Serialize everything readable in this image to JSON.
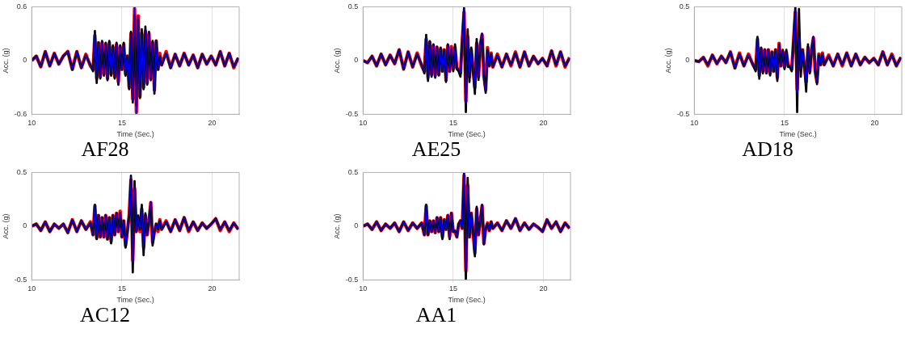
{
  "chart_data": [
    {
      "type": "line",
      "title": "AF28",
      "xlabel": "Time (Sec.)",
      "ylabel": "Acc. (g)",
      "xlim": [
        10,
        21.5
      ],
      "ylim": [
        -0.6,
        0.6
      ],
      "xticks": [
        10,
        15,
        20
      ],
      "yticks": [
        -0.6,
        0,
        0.6
      ],
      "grid": "x",
      "legend": false,
      "marker": "none",
      "line_style": "solid",
      "x": [
        10,
        10.25,
        10.5,
        10.75,
        11,
        11.25,
        11.5,
        11.75,
        12,
        12.25,
        12.5,
        12.75,
        13,
        13.25,
        13.4,
        13.5,
        13.6,
        13.7,
        13.8,
        13.9,
        14,
        14.1,
        14.2,
        14.3,
        14.4,
        14.5,
        14.6,
        14.7,
        14.8,
        14.9,
        15,
        15.1,
        15.2,
        15.3,
        15.4,
        15.5,
        15.6,
        15.7,
        15.8,
        15.9,
        16,
        16.1,
        16.2,
        16.3,
        16.4,
        16.5,
        16.6,
        16.7,
        16.8,
        16.9,
        17,
        17.1,
        17.2,
        17.45,
        17.7,
        17.95,
        18.2,
        18.45,
        18.7,
        18.95,
        19.2,
        19.45,
        19.7,
        19.95,
        20.2,
        20.45,
        20.7,
        20.95,
        21.2,
        21.45
      ],
      "series": [
        {
          "color": "#000000",
          "values": [
            0,
            0.05,
            -0.07,
            0.1,
            -0.06,
            0.08,
            -0.04,
            0.05,
            0.1,
            -0.1,
            0.1,
            -0.08,
            0.06,
            -0.05,
            -0.12,
            0.33,
            -0.25,
            0.2,
            -0.2,
            0.22,
            -0.17,
            0.2,
            -0.22,
            0.22,
            -0.17,
            0.17,
            -0.2,
            0.2,
            -0.27,
            0.17,
            -0.1,
            0.2,
            -0.17,
            0.05,
            -0.32,
            0.32,
            -0.47,
            0.5,
            -0.5,
            0.45,
            -0.42,
            0.35,
            -0.32,
            0.38,
            -0.27,
            0.32,
            -0.22,
            0.22,
            -0.37,
            0.22,
            -0.1,
            0.05,
            -0.05,
            0.08,
            -0.08,
            0.07,
            -0.06,
            0.08,
            -0.05,
            0.06,
            -0.08,
            0.07,
            -0.04,
            0.05,
            -0.05,
            0.1,
            -0.06,
            0.08,
            -0.07,
            0.03
          ]
        },
        {
          "color": "#ff0000",
          "values": [
            0,
            0.05,
            -0.07,
            0.1,
            -0.06,
            0.08,
            -0.04,
            0.05,
            0.1,
            -0.1,
            0.1,
            -0.08,
            0.07,
            -0.06,
            -0.1,
            0.28,
            -0.2,
            0.2,
            -0.18,
            0.2,
            -0.15,
            0.18,
            -0.2,
            0.2,
            -0.15,
            0.15,
            -0.18,
            0.18,
            -0.24,
            0.15,
            -0.1,
            0.18,
            -0.15,
            0.05,
            -0.3,
            0.3,
            -0.43,
            0.58,
            -0.58,
            0.5,
            -0.4,
            0.3,
            -0.3,
            0.33,
            -0.25,
            0.3,
            -0.2,
            0.2,
            -0.33,
            0.22,
            -0.1,
            0.08,
            -0.05,
            0.1,
            -0.08,
            0.07,
            -0.06,
            0.08,
            -0.05,
            0.06,
            -0.08,
            0.07,
            -0.04,
            0.05,
            -0.05,
            0.1,
            -0.06,
            0.08,
            -0.08,
            0.03
          ]
        },
        {
          "color": "#0000ff",
          "values": [
            0,
            0.05,
            -0.07,
            0.1,
            -0.06,
            0.08,
            -0.04,
            0.05,
            0.1,
            -0.1,
            0.1,
            -0.08,
            0.06,
            -0.05,
            -0.1,
            0.3,
            -0.2,
            0.2,
            -0.18,
            0.2,
            -0.15,
            0.18,
            -0.2,
            0.2,
            -0.15,
            0.15,
            -0.18,
            0.18,
            -0.25,
            0.15,
            -0.1,
            0.18,
            -0.15,
            0.05,
            -0.3,
            0.3,
            -0.45,
            0.6,
            -0.6,
            0.5,
            -0.4,
            0.3,
            -0.3,
            0.35,
            -0.25,
            0.3,
            -0.2,
            0.2,
            -0.35,
            0.22,
            -0.1,
            0.05,
            -0.05,
            0.08,
            -0.08,
            0.07,
            -0.06,
            0.08,
            -0.05,
            0.06,
            -0.08,
            0.07,
            -0.04,
            0.05,
            -0.05,
            0.1,
            -0.06,
            0.08,
            -0.07,
            0.03
          ]
        }
      ]
    },
    {
      "type": "line",
      "title": "AE25",
      "xlabel": "Time (Sec.)",
      "ylabel": "Acc. (g)",
      "xlim": [
        10,
        21.5
      ],
      "ylim": [
        -0.5,
        0.5
      ],
      "xticks": [
        10,
        15,
        20
      ],
      "yticks": [
        -0.5,
        0,
        0.5
      ],
      "grid": "x",
      "legend": false,
      "marker": "none",
      "line_style": "solid",
      "x": [
        10,
        10.25,
        10.5,
        10.75,
        11,
        11.25,
        11.5,
        11.75,
        12,
        12.25,
        12.5,
        12.75,
        13,
        13.25,
        13.4,
        13.5,
        13.6,
        13.7,
        13.8,
        13.9,
        14,
        14.1,
        14.2,
        14.3,
        14.4,
        14.5,
        14.6,
        14.7,
        14.8,
        14.9,
        15,
        15.1,
        15.2,
        15.3,
        15.4,
        15.5,
        15.6,
        15.7,
        15.8,
        15.9,
        16,
        16.1,
        16.2,
        16.3,
        16.4,
        16.5,
        16.6,
        16.7,
        16.8,
        16.9,
        17,
        17.1,
        17.2,
        17.45,
        17.7,
        17.95,
        18.2,
        18.45,
        18.7,
        18.95,
        19.2,
        19.45,
        19.7,
        19.95,
        20.2,
        20.45,
        20.7,
        20.95,
        21.2,
        21.45
      ],
      "series": [
        {
          "color": "#000000",
          "values": [
            0,
            -0.02,
            0.04,
            -0.05,
            0.06,
            -0.04,
            0.05,
            -0.03,
            0.1,
            -0.08,
            0.08,
            -0.06,
            0.06,
            -0.04,
            -0.12,
            0.24,
            -0.19,
            0.18,
            -0.15,
            0.15,
            -0.16,
            0.13,
            -0.14,
            0.12,
            -0.1,
            0.1,
            -0.2,
            0.15,
            -0.1,
            0.1,
            -0.1,
            0.15,
            -0.08,
            -0.1,
            -0.15,
            0.2,
            0.49,
            -0.48,
            0.29,
            -0.2,
            0.12,
            -0.1,
            -0.31,
            0.2,
            -0.18,
            0.15,
            0.25,
            -0.15,
            -0.3,
            0.1,
            -0.05,
            0.06,
            -0.06,
            0.05,
            -0.06,
            0.06,
            -0.04,
            0.07,
            -0.06,
            0.08,
            -0.05,
            0.04,
            -0.03,
            0.02,
            -0.05,
            0.09,
            -0.04,
            0.08,
            -0.05,
            0.02
          ]
        },
        {
          "color": "#ff0000",
          "values": [
            0,
            -0.02,
            0.04,
            -0.05,
            0.06,
            -0.04,
            0.05,
            -0.03,
            0.1,
            -0.08,
            0.08,
            -0.06,
            0.07,
            -0.05,
            -0.1,
            0.2,
            -0.16,
            0.17,
            -0.13,
            0.14,
            -0.14,
            0.12,
            -0.13,
            0.11,
            -0.1,
            0.1,
            -0.18,
            0.14,
            -0.1,
            0.13,
            -0.08,
            0.12,
            -0.07,
            -0.08,
            -0.12,
            0.18,
            0.45,
            -0.38,
            0.22,
            -0.15,
            0.1,
            -0.08,
            -0.25,
            0.16,
            -0.15,
            0.14,
            0.24,
            -0.14,
            -0.27,
            0.12,
            -0.05,
            0.07,
            -0.06,
            0.06,
            -0.06,
            0.06,
            -0.05,
            0.08,
            -0.06,
            0.08,
            -0.05,
            0.04,
            -0.03,
            0.02,
            -0.05,
            0.09,
            -0.05,
            0.08,
            -0.06,
            0.03
          ]
        },
        {
          "color": "#0000ff",
          "values": [
            0,
            -0.02,
            0.04,
            -0.05,
            0.06,
            -0.04,
            0.05,
            -0.03,
            0.1,
            -0.08,
            0.08,
            -0.06,
            0.06,
            -0.04,
            -0.1,
            0.22,
            -0.17,
            0.17,
            -0.14,
            0.14,
            -0.15,
            0.12,
            -0.13,
            0.11,
            -0.1,
            0.1,
            -0.18,
            0.14,
            -0.1,
            0.12,
            -0.08,
            0.12,
            -0.07,
            -0.08,
            -0.12,
            0.18,
            0.48,
            -0.4,
            0.22,
            -0.15,
            0.1,
            -0.08,
            -0.25,
            0.16,
            -0.15,
            0.14,
            0.25,
            -0.14,
            -0.28,
            0.1,
            -0.05,
            0.06,
            -0.06,
            0.05,
            -0.06,
            0.06,
            -0.04,
            0.07,
            -0.06,
            0.08,
            -0.05,
            0.04,
            -0.03,
            0.02,
            -0.05,
            0.09,
            -0.04,
            0.08,
            -0.05,
            0.02
          ]
        }
      ]
    },
    {
      "type": "line",
      "title": "AD18",
      "xlabel": "Time (Sec.)",
      "ylabel": "Acc. (g)",
      "xlim": [
        10,
        21.5
      ],
      "ylim": [
        -0.5,
        0.5
      ],
      "xticks": [
        10,
        15,
        20
      ],
      "yticks": [
        -0.5,
        0,
        0.5
      ],
      "grid": "x",
      "legend": false,
      "marker": "none",
      "line_style": "solid",
      "x": [
        10,
        10.25,
        10.5,
        10.75,
        11,
        11.25,
        11.5,
        11.75,
        12,
        12.25,
        12.5,
        12.75,
        13,
        13.25,
        13.4,
        13.5,
        13.6,
        13.7,
        13.8,
        13.9,
        14,
        14.1,
        14.2,
        14.3,
        14.4,
        14.5,
        14.6,
        14.7,
        14.8,
        14.9,
        15,
        15.1,
        15.2,
        15.3,
        15.4,
        15.5,
        15.6,
        15.7,
        15.8,
        15.9,
        16,
        16.1,
        16.2,
        16.3,
        16.4,
        16.5,
        16.6,
        16.7,
        16.8,
        16.9,
        17,
        17.1,
        17.2,
        17.45,
        17.7,
        17.95,
        18.2,
        18.45,
        18.7,
        18.95,
        19.2,
        19.45,
        19.7,
        19.95,
        20.2,
        20.45,
        20.7,
        20.95,
        21.2,
        21.45
      ],
      "series": [
        {
          "color": "#000000",
          "values": [
            0,
            -0.01,
            0.03,
            -0.04,
            0.05,
            -0.03,
            0.04,
            -0.02,
            0.08,
            -0.07,
            0.06,
            -0.05,
            0.05,
            -0.04,
            -0.1,
            0.22,
            -0.17,
            0.12,
            -0.12,
            0.1,
            -0.12,
            0.1,
            -0.14,
            0.08,
            -0.1,
            0.1,
            -0.19,
            0.15,
            -0.05,
            0.1,
            -0.08,
            0.1,
            -0.06,
            -0.06,
            -0.1,
            0.2,
            0.5,
            -0.48,
            0.48,
            -0.15,
            0.1,
            -0.05,
            -0.29,
            0.15,
            -0.12,
            0.1,
            0.22,
            -0.1,
            -0.22,
            0.05,
            -0.04,
            0.06,
            -0.04,
            0.04,
            -0.05,
            0.06,
            -0.04,
            0.07,
            -0.05,
            0.06,
            -0.04,
            0.03,
            -0.02,
            0.02,
            -0.04,
            0.08,
            -0.04,
            0.05,
            -0.05,
            0.03
          ]
        },
        {
          "color": "#ff0000",
          "values": [
            0,
            -0.01,
            0.03,
            -0.05,
            0.05,
            -0.03,
            0.04,
            -0.02,
            0.08,
            -0.07,
            0.07,
            -0.05,
            0.06,
            -0.04,
            -0.08,
            0.2,
            -0.14,
            0.11,
            -0.1,
            0.1,
            -0.11,
            0.1,
            -0.12,
            0.08,
            -0.1,
            0.1,
            -0.16,
            0.16,
            -0.05,
            0.08,
            -0.06,
            0.08,
            -0.05,
            -0.05,
            -0.08,
            0.18,
            0.45,
            -0.27,
            0.2,
            -0.08,
            0.1,
            -0.05,
            -0.2,
            0.12,
            -0.1,
            0.1,
            0.21,
            -0.1,
            -0.2,
            0.06,
            -0.04,
            0.07,
            -0.04,
            0.05,
            -0.05,
            0.06,
            -0.05,
            0.07,
            -0.05,
            0.06,
            -0.04,
            0.03,
            -0.02,
            0.02,
            -0.04,
            0.08,
            -0.04,
            0.06,
            -0.05,
            0.03
          ]
        },
        {
          "color": "#0000ff",
          "values": [
            0,
            -0.01,
            0.03,
            -0.04,
            0.05,
            -0.03,
            0.04,
            -0.02,
            0.08,
            -0.07,
            0.06,
            -0.05,
            0.05,
            -0.04,
            -0.08,
            0.21,
            -0.15,
            0.11,
            -0.1,
            0.1,
            -0.11,
            0.1,
            -0.12,
            0.08,
            -0.1,
            0.1,
            -0.17,
            0.14,
            -0.05,
            0.08,
            -0.06,
            0.08,
            -0.05,
            -0.05,
            -0.08,
            0.18,
            0.47,
            -0.3,
            0.22,
            -0.08,
            0.1,
            -0.05,
            -0.22,
            0.12,
            -0.1,
            0.1,
            0.22,
            -0.1,
            -0.2,
            0.05,
            -0.04,
            0.06,
            -0.04,
            0.04,
            -0.05,
            0.06,
            -0.04,
            0.07,
            -0.05,
            0.06,
            -0.04,
            0.03,
            -0.02,
            0.02,
            -0.04,
            0.08,
            -0.04,
            0.05,
            -0.05,
            0.03
          ]
        }
      ]
    },
    {
      "type": "line",
      "title": "AC12",
      "xlabel": "Time (Sec.)",
      "ylabel": "Acc. (g)",
      "xlim": [
        10,
        21.5
      ],
      "ylim": [
        -0.5,
        0.5
      ],
      "xticks": [
        10,
        15,
        20
      ],
      "yticks": [
        -0.5,
        0,
        0.5
      ],
      "grid": "x",
      "legend": false,
      "marker": "none",
      "line_style": "solid",
      "x": [
        10,
        10.25,
        10.5,
        10.75,
        11,
        11.25,
        11.5,
        11.75,
        12,
        12.25,
        12.5,
        12.75,
        13,
        13.25,
        13.4,
        13.5,
        13.6,
        13.7,
        13.8,
        13.9,
        14,
        14.1,
        14.2,
        14.3,
        14.4,
        14.5,
        14.6,
        14.7,
        14.8,
        14.9,
        15,
        15.1,
        15.2,
        15.3,
        15.4,
        15.5,
        15.6,
        15.7,
        15.8,
        15.9,
        16,
        16.1,
        16.2,
        16.3,
        16.4,
        16.5,
        16.6,
        16.7,
        16.8,
        16.9,
        17,
        17.1,
        17.2,
        17.45,
        17.7,
        17.95,
        18.2,
        18.45,
        18.7,
        18.95,
        19.2,
        19.45,
        19.7,
        19.95,
        20.2,
        20.45,
        20.7,
        20.95,
        21.2,
        21.45
      ],
      "series": [
        {
          "color": "#000000",
          "values": [
            0,
            0.02,
            -0.04,
            0.04,
            -0.05,
            0.02,
            -0.02,
            0.02,
            -0.06,
            0.06,
            -0.05,
            0.05,
            -0.03,
            0.03,
            -0.08,
            0.2,
            -0.12,
            0.1,
            -0.1,
            0.08,
            -0.1,
            0.1,
            -0.12,
            0.08,
            -0.16,
            0.1,
            -0.08,
            0.12,
            -0.05,
            0.12,
            -0.1,
            0.05,
            -0.2,
            -0.05,
            0.1,
            0.47,
            -0.43,
            0.42,
            -0.05,
            0.1,
            -0.03,
            0.2,
            -0.27,
            0.12,
            -0.08,
            0.05,
            0.22,
            -0.18,
            -0.05,
            0.02,
            -0.03,
            0.05,
            -0.03,
            0.04,
            -0.05,
            0.06,
            -0.04,
            0.08,
            -0.04,
            0.04,
            -0.04,
            0.03,
            -0.02,
            0.02,
            0.07,
            -0.03,
            0.04,
            -0.04,
            0.03,
            -0.03
          ]
        },
        {
          "color": "#ff0000",
          "values": [
            0,
            0.02,
            -0.04,
            0.04,
            -0.05,
            0.02,
            -0.02,
            0.02,
            -0.06,
            0.06,
            -0.05,
            0.05,
            -0.03,
            0.04,
            -0.08,
            0.19,
            -0.11,
            0.1,
            -0.1,
            0.08,
            -0.1,
            0.1,
            -0.12,
            0.08,
            -0.14,
            0.1,
            -0.08,
            0.12,
            -0.05,
            0.14,
            -0.1,
            0.05,
            -0.18,
            -0.05,
            0.1,
            0.43,
            -0.32,
            0.35,
            -0.05,
            0.08,
            -0.05,
            0.16,
            -0.2,
            0.1,
            -0.08,
            0.05,
            0.22,
            -0.15,
            -0.05,
            0.02,
            -0.05,
            0.06,
            -0.03,
            0.05,
            -0.05,
            0.06,
            -0.04,
            0.08,
            -0.05,
            0.04,
            -0.04,
            0.03,
            -0.02,
            0.02,
            0.07,
            -0.04,
            0.04,
            -0.05,
            0.03,
            -0.03
          ]
        },
        {
          "color": "#0000ff",
          "values": [
            0,
            0.02,
            -0.04,
            0.04,
            -0.05,
            0.02,
            -0.02,
            0.02,
            -0.06,
            0.06,
            -0.05,
            0.05,
            -0.03,
            0.03,
            -0.08,
            0.2,
            -0.11,
            0.1,
            -0.1,
            0.08,
            -0.1,
            0.1,
            -0.12,
            0.08,
            -0.14,
            0.1,
            -0.08,
            0.12,
            -0.05,
            0.12,
            -0.1,
            0.05,
            -0.18,
            -0.05,
            0.1,
            0.46,
            -0.33,
            0.35,
            -0.05,
            0.08,
            -0.03,
            0.16,
            -0.2,
            0.1,
            -0.08,
            0.05,
            0.22,
            -0.15,
            -0.05,
            0.02,
            -0.03,
            0.05,
            -0.03,
            0.04,
            -0.05,
            0.06,
            -0.04,
            0.08,
            -0.04,
            0.04,
            -0.04,
            0.03,
            -0.02,
            0.02,
            0.07,
            -0.03,
            0.04,
            -0.04,
            0.03,
            -0.03
          ]
        }
      ]
    },
    {
      "type": "line",
      "title": "AA1",
      "xlabel": "Time (Sec.)",
      "ylabel": "Acc. (g)",
      "xlim": [
        10,
        21.5
      ],
      "ylim": [
        -0.5,
        0.5
      ],
      "xticks": [
        10,
        15,
        20
      ],
      "yticks": [
        -0.5,
        0,
        0.5
      ],
      "grid": "x",
      "legend": false,
      "marker": "none",
      "line_style": "solid",
      "x": [
        10,
        10.25,
        10.5,
        10.75,
        11,
        11.25,
        11.5,
        11.75,
        12,
        12.25,
        12.5,
        12.75,
        13,
        13.25,
        13.4,
        13.5,
        13.6,
        13.7,
        13.8,
        13.9,
        14,
        14.1,
        14.2,
        14.3,
        14.4,
        14.5,
        14.6,
        14.7,
        14.8,
        14.9,
        15,
        15.1,
        15.2,
        15.3,
        15.4,
        15.5,
        15.6,
        15.7,
        15.8,
        15.9,
        16,
        16.1,
        16.2,
        16.3,
        16.4,
        16.5,
        16.6,
        16.7,
        16.8,
        16.9,
        17,
        17.1,
        17.2,
        17.45,
        17.7,
        17.95,
        18.2,
        18.45,
        18.7,
        18.95,
        19.2,
        19.45,
        19.7,
        19.95,
        20.2,
        20.45,
        20.7,
        20.95,
        21.2,
        21.45
      ],
      "series": [
        {
          "color": "#000000",
          "values": [
            0,
            0.02,
            -0.03,
            0.04,
            -0.04,
            0.02,
            -0.02,
            0.03,
            -0.05,
            0.04,
            -0.04,
            0.03,
            -0.02,
            0.03,
            -0.08,
            0.2,
            -0.08,
            0.05,
            -0.05,
            0.05,
            -0.06,
            0.08,
            -0.05,
            0.08,
            -0.12,
            0.06,
            -0.03,
            0.1,
            -0.12,
            0.12,
            -0.05,
            -0.04,
            -0.1,
            0.02,
            0.05,
            -0.02,
            0.5,
            -0.5,
            0.45,
            -0.1,
            0.12,
            -0.05,
            -0.28,
            0.18,
            -0.08,
            0.05,
            0.2,
            -0.17,
            -0.02,
            0.02,
            -0.04,
            0.04,
            -0.02,
            0.03,
            -0.04,
            0.05,
            -0.02,
            0.07,
            -0.04,
            0.03,
            -0.03,
            0.02,
            -0.01,
            -0.05,
            0.06,
            -0.02,
            0.04,
            -0.05,
            0.03,
            -0.02
          ]
        },
        {
          "color": "#ff0000",
          "values": [
            0,
            0.02,
            -0.03,
            0.04,
            -0.04,
            0.02,
            -0.02,
            0.03,
            -0.05,
            0.04,
            -0.04,
            0.03,
            -0.02,
            0.03,
            -0.08,
            0.19,
            -0.08,
            0.05,
            -0.05,
            0.05,
            -0.06,
            0.08,
            -0.05,
            0.08,
            -0.1,
            0.06,
            -0.03,
            0.1,
            -0.1,
            0.12,
            -0.05,
            -0.05,
            -0.1,
            0.02,
            0.05,
            -0.02,
            0.47,
            -0.42,
            0.38,
            -0.1,
            0.12,
            -0.05,
            -0.25,
            0.16,
            -0.08,
            0.05,
            0.19,
            -0.16,
            -0.02,
            0.03,
            -0.04,
            0.04,
            -0.02,
            0.03,
            -0.04,
            0.05,
            -0.02,
            0.07,
            -0.04,
            0.03,
            -0.03,
            0.02,
            -0.01,
            -0.05,
            0.06,
            -0.02,
            0.04,
            -0.05,
            0.03,
            -0.02
          ]
        },
        {
          "color": "#0000ff",
          "values": [
            0,
            0.02,
            -0.03,
            0.04,
            -0.04,
            0.02,
            -0.02,
            0.03,
            -0.05,
            0.04,
            -0.04,
            0.03,
            -0.02,
            0.03,
            -0.08,
            0.2,
            -0.08,
            0.05,
            -0.05,
            0.05,
            -0.06,
            0.08,
            -0.05,
            0.08,
            -0.1,
            0.06,
            -0.03,
            0.1,
            -0.1,
            0.12,
            -0.05,
            -0.04,
            -0.1,
            0.02,
            0.05,
            -0.02,
            0.49,
            -0.4,
            0.38,
            -0.1,
            0.12,
            -0.05,
            -0.25,
            0.16,
            -0.08,
            0.05,
            0.2,
            -0.16,
            -0.02,
            0.02,
            -0.04,
            0.04,
            -0.02,
            0.03,
            -0.04,
            0.05,
            -0.02,
            0.07,
            -0.04,
            0.03,
            -0.03,
            0.02,
            -0.01,
            -0.05,
            0.06,
            -0.02,
            0.04,
            -0.05,
            0.03,
            -0.02
          ]
        }
      ]
    }
  ]
}
